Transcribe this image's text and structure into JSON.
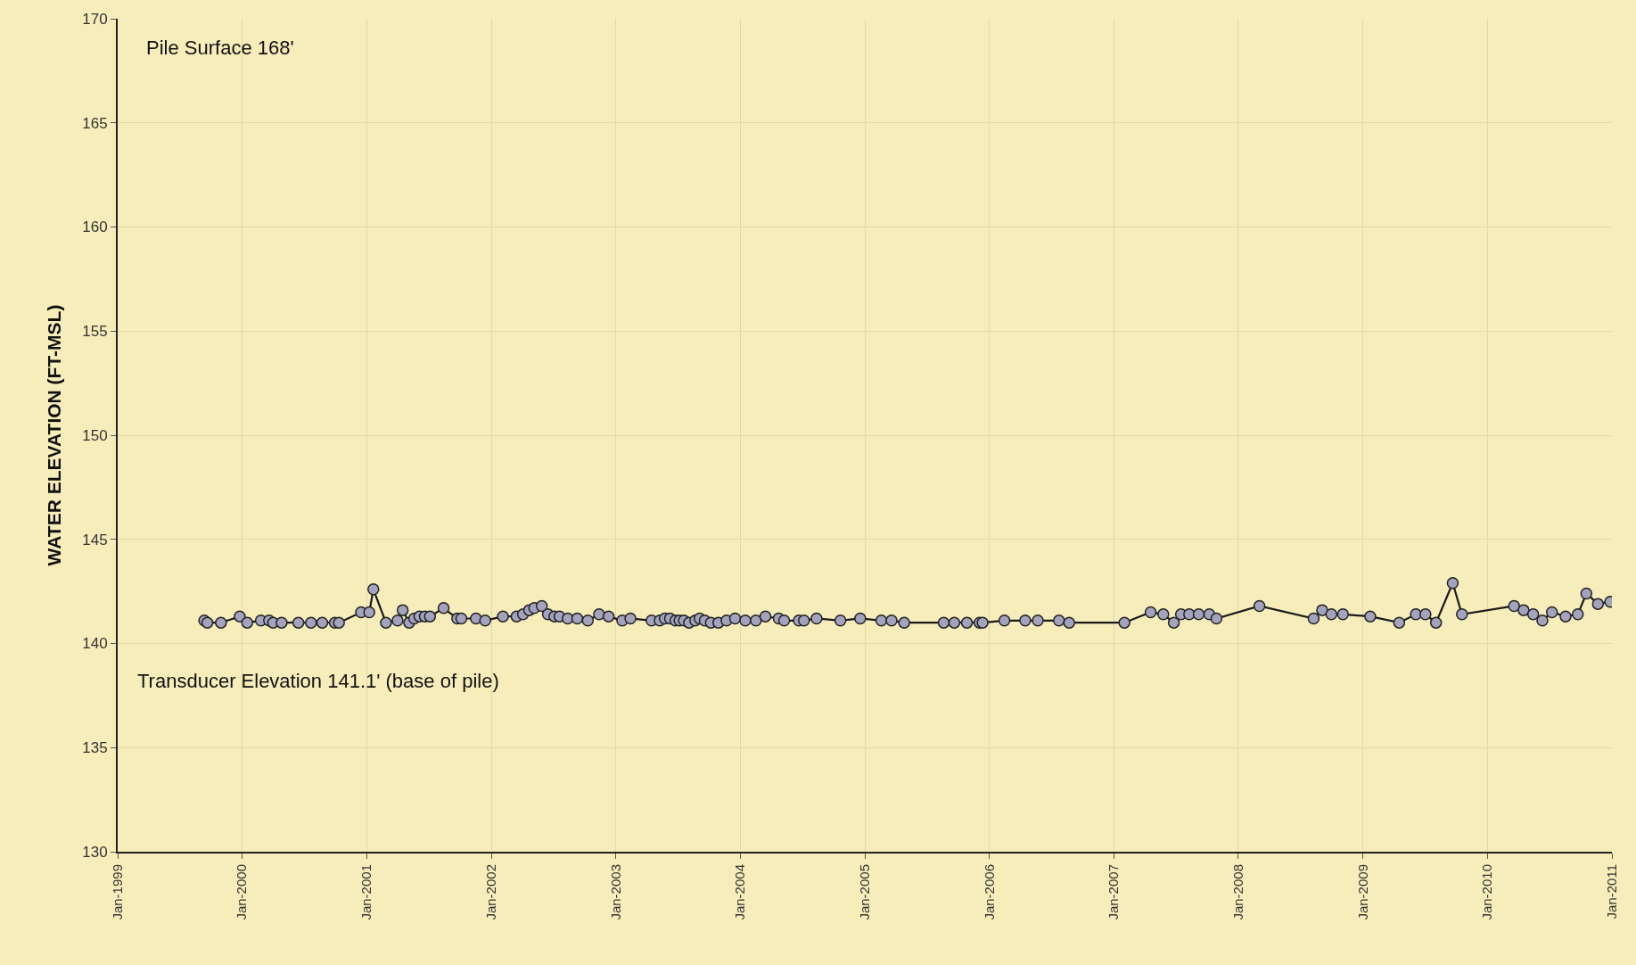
{
  "chart_data": {
    "type": "line",
    "ylabel": "WATER ELEVATION (FT-MSL)",
    "annotations": [
      "Pile Surface 168'",
      "Transducer Elevation 141.1' (base of pile)"
    ],
    "x": [
      "1999-09-12",
      "1999-09-21",
      "1999-10-31",
      "1999-12-25",
      "2000-01-16",
      "2000-02-25",
      "2000-03-20",
      "2000-04-01",
      "2000-04-26",
      "2000-06-14",
      "2000-07-21",
      "2000-08-23",
      "2000-09-29",
      "2000-10-11",
      "2000-12-15",
      "2001-01-08",
      "2001-01-20",
      "2001-02-26",
      "2001-04-01",
      "2001-04-16",
      "2001-05-05",
      "2001-05-20",
      "2001-06-04",
      "2001-06-20",
      "2001-07-05",
      "2001-08-14",
      "2001-09-23",
      "2001-10-05",
      "2001-11-17",
      "2001-12-14",
      "2002-02-04",
      "2002-03-16",
      "2002-04-04",
      "2002-04-22",
      "2002-05-07",
      "2002-05-29",
      "2002-06-16",
      "2002-07-05",
      "2002-07-20",
      "2002-08-13",
      "2002-09-10",
      "2002-10-11",
      "2002-11-13",
      "2002-12-11",
      "2003-01-20",
      "2003-02-13",
      "2003-04-16",
      "2003-05-10",
      "2003-05-25",
      "2003-06-09",
      "2003-06-25",
      "2003-07-07",
      "2003-07-20",
      "2003-08-04",
      "2003-08-22",
      "2003-09-04",
      "2003-09-19",
      "2003-10-07",
      "2003-10-29",
      "2003-11-22",
      "2003-12-17",
      "2004-01-16",
      "2004-02-16",
      "2004-03-15",
      "2004-04-23",
      "2004-05-09",
      "2004-06-21",
      "2004-07-06",
      "2004-08-12",
      "2004-10-21",
      "2004-12-18",
      "2005-02-18",
      "2005-03-20",
      "2005-04-26",
      "2005-08-20",
      "2005-09-20",
      "2005-10-27",
      "2005-12-03",
      "2005-12-12",
      "2006-02-14",
      "2006-04-16",
      "2006-05-23",
      "2006-07-24",
      "2006-08-23",
      "2007-02-01",
      "2007-04-19",
      "2007-05-26",
      "2007-06-26",
      "2007-07-17",
      "2007-08-10",
      "2007-09-07",
      "2007-10-08",
      "2007-10-29",
      "2008-03-03",
      "2008-08-09",
      "2008-09-03",
      "2008-09-30",
      "2008-11-03",
      "2009-01-22",
      "2009-04-17",
      "2009-06-05",
      "2009-07-03",
      "2009-08-03",
      "2009-09-21",
      "2009-10-18",
      "2010-03-20",
      "2010-04-17",
      "2010-05-15",
      "2010-06-11",
      "2010-07-09",
      "2010-08-18",
      "2010-09-23",
      "2010-10-18",
      "2010-11-21",
      "2010-12-27"
    ],
    "series": [
      {
        "color": "#a3a3bd",
        "values": [
          141.1,
          141.0,
          141.0,
          141.3,
          141.0,
          141.1,
          141.1,
          141.0,
          141.0,
          141.0,
          141.0,
          141.0,
          141.0,
          141.0,
          141.5,
          141.5,
          142.6,
          141.0,
          141.1,
          141.6,
          141.0,
          141.2,
          141.3,
          141.3,
          141.3,
          141.7,
          141.2,
          141.2,
          141.2,
          141.1,
          141.3,
          141.3,
          141.4,
          141.6,
          141.7,
          141.8,
          141.4,
          141.3,
          141.3,
          141.2,
          141.2,
          141.1,
          141.4,
          141.3,
          141.1,
          141.2,
          141.1,
          141.1,
          141.2,
          141.2,
          141.1,
          141.1,
          141.1,
          141.0,
          141.1,
          141.2,
          141.1,
          141.0,
          141.0,
          141.1,
          141.2,
          141.1,
          141.1,
          141.3,
          141.2,
          141.1,
          141.1,
          141.1,
          141.2,
          141.1,
          141.2,
          141.1,
          141.1,
          141.0,
          141.0,
          141.0,
          141.0,
          141.0,
          141.0,
          141.1,
          141.1,
          141.1,
          141.1,
          141.0,
          141.0,
          141.5,
          141.4,
          141.0,
          141.4,
          141.4,
          141.4,
          141.4,
          141.2,
          141.8,
          141.2,
          141.6,
          141.4,
          141.4,
          141.3,
          141.0,
          141.4,
          141.4,
          141.0,
          142.9,
          141.4,
          141.8,
          141.6,
          141.4,
          141.1,
          141.5,
          141.3,
          141.4,
          142.4,
          141.9,
          142.0
        ]
      }
    ],
    "xlim": [
      "1999-01-01",
      "2011-01-01"
    ],
    "xticks": [
      {
        "value": "1999-01-01",
        "label": "Jan-1999"
      },
      {
        "value": "2000-01-01",
        "label": "Jan-2000"
      },
      {
        "value": "2001-01-01",
        "label": "Jan-2001"
      },
      {
        "value": "2002-01-01",
        "label": "Jan-2002"
      },
      {
        "value": "2003-01-01",
        "label": "Jan-2003"
      },
      {
        "value": "2004-01-01",
        "label": "Jan-2004"
      },
      {
        "value": "2005-01-01",
        "label": "Jan-2005"
      },
      {
        "value": "2006-01-01",
        "label": "Jan-2006"
      },
      {
        "value": "2007-01-01",
        "label": "Jan-2007"
      },
      {
        "value": "2008-01-01",
        "label": "Jan-2008"
      },
      {
        "value": "2009-01-01",
        "label": "Jan-2009"
      },
      {
        "value": "2010-01-01",
        "label": "Jan-2010"
      },
      {
        "value": "2011-01-01",
        "label": "Jan-2011"
      }
    ],
    "ylim": [
      130,
      170
    ],
    "yticks": [
      130,
      135,
      140,
      145,
      150,
      155,
      160,
      165,
      170
    ],
    "grid": true,
    "marker": "circle",
    "line_style": "solid"
  }
}
